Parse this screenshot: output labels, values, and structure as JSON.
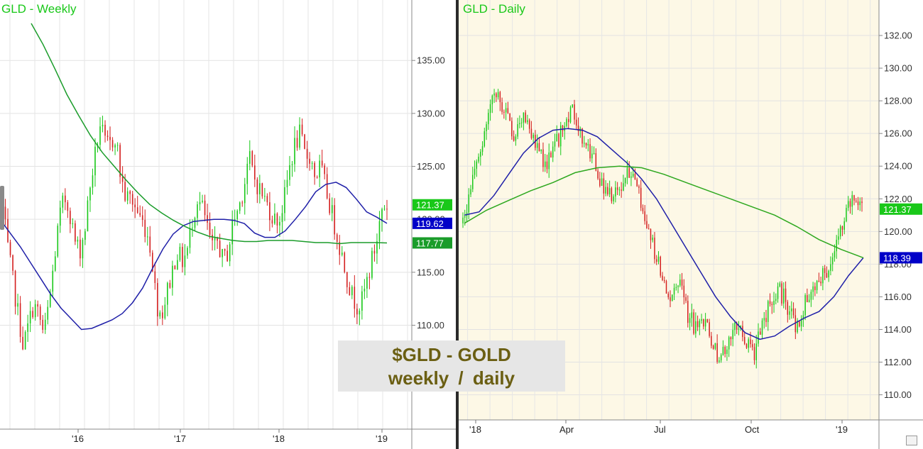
{
  "chart_data": [
    {
      "type": "candlestick",
      "title": "GLD - Weekly",
      "ylim": [
        103,
        139
      ],
      "y_ticks": [
        "135.00",
        "130.00",
        "125.00",
        "120.00",
        "115.00",
        "110.00"
      ],
      "x_ticks": [
        "'16",
        "'17",
        "'18",
        "'19"
      ],
      "price_series": [
        121,
        117,
        114,
        111,
        108,
        110,
        112,
        111,
        109,
        112,
        116,
        120,
        122,
        121,
        118,
        117,
        119,
        123,
        126,
        129,
        127,
        127,
        128,
        124,
        122,
        122,
        121,
        120,
        119,
        117,
        112,
        111,
        113,
        115,
        117,
        116,
        117,
        120,
        122,
        121,
        119,
        117,
        118,
        116,
        117,
        120,
        121,
        123,
        126,
        124,
        123,
        122,
        121,
        120,
        120,
        122,
        125,
        127,
        128,
        126,
        126,
        124,
        125,
        123,
        121,
        119,
        117,
        115,
        113,
        112,
        112,
        114,
        116,
        118,
        121,
        121.37
      ],
      "series": [
        {
          "name": "40-week MA",
          "color": "#1f1fa8",
          "values": [
            120,
            118.7,
            117.4,
            115.9,
            114.4,
            112.9,
            111.6,
            110.6,
            109.6,
            109.7,
            110.1,
            110.5,
            111.1,
            112.1,
            113.5,
            115.4,
            117.2,
            118.6,
            119.4,
            119.8,
            119.9,
            120.0,
            120.0,
            119.9,
            119.6,
            118.7,
            118.3,
            118.3,
            118.9,
            120.0,
            121.2,
            122.6,
            123.3,
            123.5,
            123.0,
            121.9,
            120.7,
            120.2,
            119.62
          ]
        },
        {
          "name": "200-week MA",
          "color": "#1a9c2a",
          "values": [
            138.5,
            136.5,
            134.2,
            131.8,
            129.8,
            127.9,
            126.3,
            125.0,
            123.7,
            122.5,
            121.4,
            120.6,
            119.9,
            119.3,
            118.8,
            118.4,
            118.2,
            118.0,
            117.9,
            117.9,
            118.0,
            118.0,
            118.0,
            117.9,
            117.8,
            117.8,
            117.7,
            117.8,
            117.8,
            117.8,
            117.77
          ]
        }
      ],
      "last_price": "121.37",
      "ma_short_label": "119.62",
      "ma_long_label": "117.77"
    },
    {
      "type": "candlestick",
      "title": "GLD - Daily",
      "ylim": [
        109.2,
        133
      ],
      "y_ticks": [
        "132.00",
        "130.00",
        "128.00",
        "126.00",
        "124.00",
        "122.00",
        "120.00",
        "118.00",
        "116.00",
        "114.00",
        "112.00",
        "110.00"
      ],
      "x_ticks": [
        "'18",
        "Apr",
        "Jul",
        "Oct",
        "'19"
      ],
      "price_series": [
        120.5,
        123,
        125,
        127,
        128.5,
        127.5,
        126,
        127,
        126,
        125,
        124,
        125,
        126.5,
        127.5,
        126,
        125,
        124,
        122.5,
        122,
        123,
        123.5,
        122.5,
        121,
        119,
        117,
        116,
        117,
        115,
        114,
        114.5,
        113,
        112,
        113.5,
        114,
        113.5,
        112.5,
        114,
        116,
        116.5,
        115.5,
        114,
        115.5,
        116,
        117,
        118,
        119,
        121,
        122,
        121.37
      ],
      "series": [
        {
          "name": "50-day MA",
          "color": "#1f1fa8",
          "values": [
            121,
            121.2,
            122.2,
            123.5,
            124.8,
            125.7,
            126.2,
            126.3,
            126.2,
            125.8,
            125.0,
            124.2,
            123.2,
            122.0,
            120.5,
            119.0,
            117.5,
            116.0,
            114.8,
            113.8,
            113.4,
            113.6,
            114.2,
            114.7,
            115.1,
            116.0,
            117.3,
            118.39
          ]
        },
        {
          "name": "200-day MA",
          "color": "#2ea81f",
          "values": [
            120.5,
            121.3,
            121.9,
            122.5,
            123.0,
            123.6,
            123.9,
            124.0,
            123.9,
            123.5,
            123.0,
            122.5,
            122.0,
            121.5,
            121.0,
            120.3,
            119.5,
            118.9,
            118.39
          ]
        }
      ],
      "last_price": "121.37",
      "ma_short_label": "118.39",
      "grid": true,
      "background": "#fdf8e6"
    }
  ],
  "caption": {
    "line1": "$GLD - GOLD",
    "line2": "weekly   /   daily"
  },
  "colors": {
    "up": "#19c819",
    "down": "#d42020",
    "tag_green": "#19c819",
    "tag_blue": "#0000c8",
    "tag_dark_green": "#1a9c2a"
  }
}
